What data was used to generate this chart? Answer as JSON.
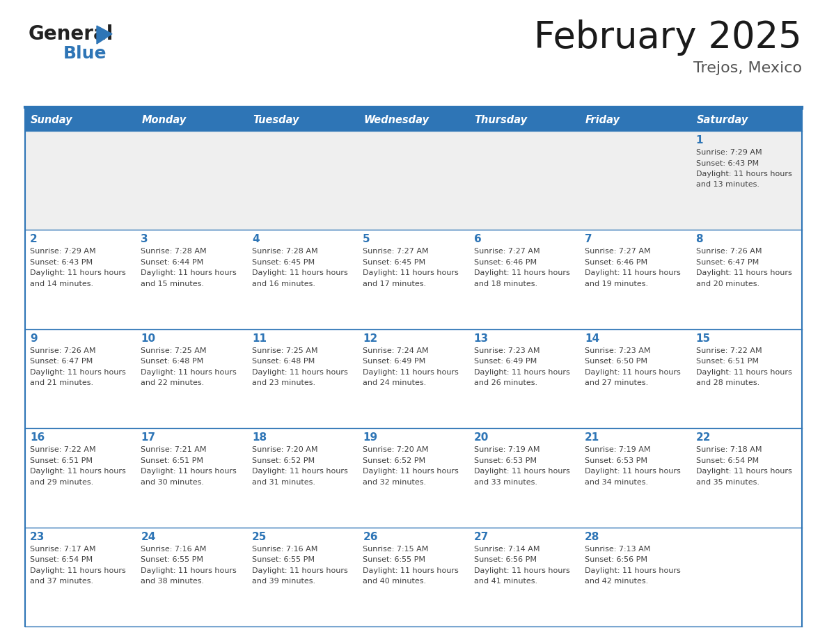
{
  "title": "February 2025",
  "subtitle": "Trejos, Mexico",
  "header_bg": "#2E75B6",
  "header_text_color": "#FFFFFF",
  "day_names": [
    "Sunday",
    "Monday",
    "Tuesday",
    "Wednesday",
    "Thursday",
    "Friday",
    "Saturday"
  ],
  "bg_color": "#FFFFFF",
  "cell_bg_week0": "#EFEFEF",
  "cell_bg_other": "#FFFFFF",
  "border_color": "#2E75B6",
  "day_num_color": "#2E75B6",
  "info_text_color": "#404040",
  "calendar": [
    [
      null,
      null,
      null,
      null,
      null,
      null,
      1
    ],
    [
      2,
      3,
      4,
      5,
      6,
      7,
      8
    ],
    [
      9,
      10,
      11,
      12,
      13,
      14,
      15
    ],
    [
      16,
      17,
      18,
      19,
      20,
      21,
      22
    ],
    [
      23,
      24,
      25,
      26,
      27,
      28,
      null
    ]
  ],
  "sunrise": {
    "1": "7:29 AM",
    "2": "7:29 AM",
    "3": "7:28 AM",
    "4": "7:28 AM",
    "5": "7:27 AM",
    "6": "7:27 AM",
    "7": "7:27 AM",
    "8": "7:26 AM",
    "9": "7:26 AM",
    "10": "7:25 AM",
    "11": "7:25 AM",
    "12": "7:24 AM",
    "13": "7:23 AM",
    "14": "7:23 AM",
    "15": "7:22 AM",
    "16": "7:22 AM",
    "17": "7:21 AM",
    "18": "7:20 AM",
    "19": "7:20 AM",
    "20": "7:19 AM",
    "21": "7:19 AM",
    "22": "7:18 AM",
    "23": "7:17 AM",
    "24": "7:16 AM",
    "25": "7:16 AM",
    "26": "7:15 AM",
    "27": "7:14 AM",
    "28": "7:13 AM"
  },
  "sunset": {
    "1": "6:43 PM",
    "2": "6:43 PM",
    "3": "6:44 PM",
    "4": "6:45 PM",
    "5": "6:45 PM",
    "6": "6:46 PM",
    "7": "6:46 PM",
    "8": "6:47 PM",
    "9": "6:47 PM",
    "10": "6:48 PM",
    "11": "6:48 PM",
    "12": "6:49 PM",
    "13": "6:49 PM",
    "14": "6:50 PM",
    "15": "6:51 PM",
    "16": "6:51 PM",
    "17": "6:51 PM",
    "18": "6:52 PM",
    "19": "6:52 PM",
    "20": "6:53 PM",
    "21": "6:53 PM",
    "22": "6:54 PM",
    "23": "6:54 PM",
    "24": "6:55 PM",
    "25": "6:55 PM",
    "26": "6:55 PM",
    "27": "6:56 PM",
    "28": "6:56 PM"
  },
  "daylight_hours": {
    "1": "11 hours and 13 minutes.",
    "2": "11 hours and 14 minutes.",
    "3": "11 hours and 15 minutes.",
    "4": "11 hours and 16 minutes.",
    "5": "11 hours and 17 minutes.",
    "6": "11 hours and 18 minutes.",
    "7": "11 hours and 19 minutes.",
    "8": "11 hours and 20 minutes.",
    "9": "11 hours and 21 minutes.",
    "10": "11 hours and 22 minutes.",
    "11": "11 hours and 23 minutes.",
    "12": "11 hours and 24 minutes.",
    "13": "11 hours and 26 minutes.",
    "14": "11 hours and 27 minutes.",
    "15": "11 hours and 28 minutes.",
    "16": "11 hours and 29 minutes.",
    "17": "11 hours and 30 minutes.",
    "18": "11 hours and 31 minutes.",
    "19": "11 hours and 32 minutes.",
    "20": "11 hours and 33 minutes.",
    "21": "11 hours and 34 minutes.",
    "22": "11 hours and 35 minutes.",
    "23": "11 hours and 37 minutes.",
    "24": "11 hours and 38 minutes.",
    "25": "11 hours and 39 minutes.",
    "26": "11 hours and 40 minutes.",
    "27": "11 hours and 41 minutes.",
    "28": "11 hours and 42 minutes."
  }
}
